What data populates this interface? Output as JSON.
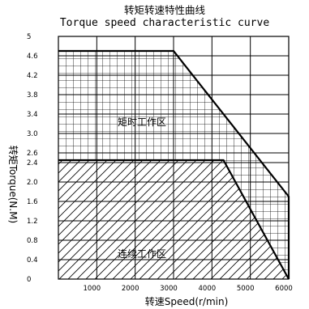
{
  "chart_data": {
    "type": "area",
    "title": "转矩转速特性曲线",
    "subtitle": "Torque speed characteristic curve",
    "xlabel": "转速Speed(r/min)",
    "ylabel": "转矩Torque(N.M)",
    "xlim": [
      0,
      6000
    ],
    "ylim": [
      0,
      5
    ],
    "x_ticks": [
      "1000",
      "2000",
      "3000",
      "4000",
      "5000",
      "6000"
    ],
    "y_ticks": [
      "0",
      "0.4",
      "0.8",
      "1.2",
      "1.6",
      "2.0",
      "2.4",
      "2.6",
      "3.0",
      "3.4",
      "3.8",
      "4.2",
      "4.6",
      "5"
    ],
    "grid": true,
    "series": [
      {
        "name": "矩时工作区",
        "points": [
          [
            0,
            4.7
          ],
          [
            3000,
            4.7
          ],
          [
            6000,
            1.7
          ],
          [
            6000,
            0
          ]
        ],
        "fill": "crosshatch"
      },
      {
        "name": "连续工作区",
        "points": [
          [
            0,
            2.45
          ],
          [
            4300,
            2.45
          ],
          [
            6000,
            0
          ]
        ],
        "fill": "diagonal"
      }
    ]
  }
}
